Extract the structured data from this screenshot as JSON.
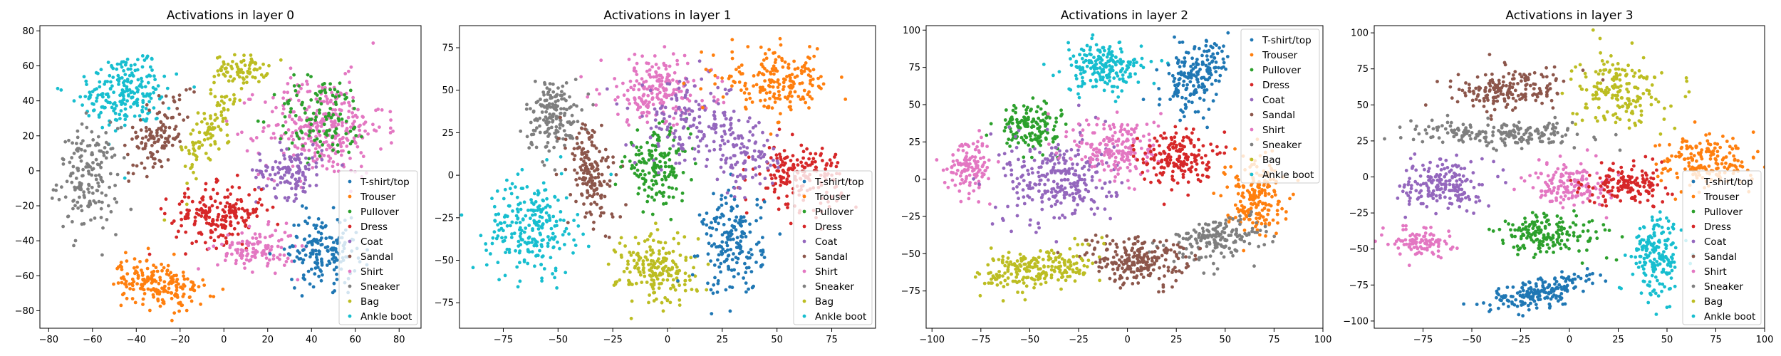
{
  "chart_data": [
    {
      "type": "scatter",
      "title": "Activations in layer 0",
      "xlim": [
        -84,
        90
      ],
      "ylim": [
        -90,
        83
      ],
      "xticks": [
        -80,
        -60,
        -40,
        -20,
        0,
        20,
        40,
        60,
        80
      ],
      "yticks": [
        -80,
        -60,
        -40,
        -20,
        0,
        20,
        40,
        60,
        80
      ],
      "legend_position": "lower right",
      "clusters": [
        {
          "series": "Ankle boot",
          "cx": -45,
          "cy": 45,
          "rx": 22,
          "ry": 22,
          "n": 220,
          "rot": 20
        },
        {
          "series": "Sandal",
          "cx": -30,
          "cy": 20,
          "rx": 10,
          "ry": 25,
          "n": 120,
          "rot": -20
        },
        {
          "series": "Sneaker",
          "cx": -62,
          "cy": -5,
          "rx": 14,
          "ry": 30,
          "n": 170,
          "rot": 0
        },
        {
          "series": "Bag",
          "cx": 8,
          "cy": 58,
          "rx": 12,
          "ry": 8,
          "n": 80,
          "rot": 0
        },
        {
          "series": "Bag",
          "cx": -7,
          "cy": 22,
          "rx": 7,
          "ry": 28,
          "n": 100,
          "rot": -20
        },
        {
          "series": "Shirt",
          "cx": 45,
          "cy": 25,
          "rx": 28,
          "ry": 28,
          "n": 320,
          "rot": 0
        },
        {
          "series": "Pullover",
          "cx": 45,
          "cy": 30,
          "rx": 22,
          "ry": 24,
          "n": 120,
          "rot": 0
        },
        {
          "series": "Coat",
          "cx": 30,
          "cy": 0,
          "rx": 15,
          "ry": 15,
          "n": 120,
          "rot": 0
        },
        {
          "series": "Dress",
          "cx": -2,
          "cy": -25,
          "rx": 22,
          "ry": 16,
          "n": 200,
          "rot": 10
        },
        {
          "series": "Shirt",
          "cx": 15,
          "cy": -45,
          "rx": 18,
          "ry": 12,
          "n": 120,
          "rot": 0
        },
        {
          "series": "T-shirt/top",
          "cx": 45,
          "cy": -45,
          "rx": 16,
          "ry": 20,
          "n": 170,
          "rot": 0
        },
        {
          "series": "Trouser",
          "cx": -30,
          "cy": -65,
          "rx": 20,
          "ry": 13,
          "n": 200,
          "rot": -20
        }
      ]
    },
    {
      "type": "scatter",
      "title": "Activations in layer 1",
      "xlim": [
        -95,
        95
      ],
      "ylim": [
        -90,
        88
      ],
      "xticks": [
        -75,
        -50,
        -25,
        0,
        25,
        50,
        75
      ],
      "yticks": [
        -75,
        -50,
        -25,
        0,
        25,
        50,
        75
      ],
      "legend_position": "lower right",
      "clusters": [
        {
          "series": "Sneaker",
          "cx": -52,
          "cy": 35,
          "rx": 13,
          "ry": 22,
          "n": 170,
          "rot": 0
        },
        {
          "series": "Ankle boot",
          "cx": -62,
          "cy": -30,
          "rx": 20,
          "ry": 28,
          "n": 240,
          "rot": 0
        },
        {
          "series": "Sandal",
          "cx": -35,
          "cy": 0,
          "rx": 10,
          "ry": 30,
          "n": 170,
          "rot": 10
        },
        {
          "series": "Shirt",
          "cx": -5,
          "cy": 50,
          "rx": 25,
          "ry": 20,
          "n": 200,
          "rot": 0
        },
        {
          "series": "Pullover",
          "cx": -5,
          "cy": 5,
          "rx": 15,
          "ry": 20,
          "n": 160,
          "rot": 0
        },
        {
          "series": "Coat",
          "cx": 10,
          "cy": 30,
          "rx": 25,
          "ry": 25,
          "n": 160,
          "rot": 0
        },
        {
          "series": "Trouser",
          "cx": 50,
          "cy": 55,
          "rx": 25,
          "ry": 18,
          "n": 200,
          "rot": -10
        },
        {
          "series": "Dress",
          "cx": 60,
          "cy": 0,
          "rx": 20,
          "ry": 18,
          "n": 180,
          "rot": 0
        },
        {
          "series": "Bag",
          "cx": -5,
          "cy": -55,
          "rx": 18,
          "ry": 22,
          "n": 200,
          "rot": 0
        },
        {
          "series": "T-shirt/top",
          "cx": 30,
          "cy": -40,
          "rx": 14,
          "ry": 30,
          "n": 190,
          "rot": 0
        },
        {
          "series": "Coat",
          "cx": 35,
          "cy": 10,
          "rx": 15,
          "ry": 20,
          "n": 100,
          "rot": 0
        }
      ]
    },
    {
      "type": "scatter",
      "title": "Activations in layer 2",
      "xlim": [
        -103,
        100
      ],
      "ylim": [
        -100,
        103
      ],
      "xticks": [
        -100,
        -75,
        -50,
        -25,
        0,
        25,
        50,
        75,
        100
      ],
      "yticks": [
        -75,
        -50,
        -25,
        0,
        25,
        50,
        75,
        100
      ],
      "legend_position": "upper right",
      "clusters": [
        {
          "series": "Ankle boot",
          "cx": -12,
          "cy": 75,
          "rx": 20,
          "ry": 16,
          "n": 200,
          "rot": 0
        },
        {
          "series": "T-shirt/top",
          "cx": 35,
          "cy": 70,
          "rx": 15,
          "ry": 25,
          "n": 180,
          "rot": -20
        },
        {
          "series": "Shirt",
          "cx": -80,
          "cy": 10,
          "rx": 12,
          "ry": 18,
          "n": 120,
          "rot": 0
        },
        {
          "series": "Pullover",
          "cx": -50,
          "cy": 35,
          "rx": 15,
          "ry": 15,
          "n": 150,
          "rot": 0
        },
        {
          "series": "Coat",
          "cx": -35,
          "cy": 0,
          "rx": 28,
          "ry": 30,
          "n": 280,
          "rot": 0
        },
        {
          "series": "Shirt",
          "cx": -5,
          "cy": 20,
          "rx": 22,
          "ry": 22,
          "n": 200,
          "rot": 0
        },
        {
          "series": "Dress",
          "cx": 25,
          "cy": 15,
          "rx": 18,
          "ry": 18,
          "n": 180,
          "rot": 0
        },
        {
          "series": "Trouser",
          "cx": 65,
          "cy": -10,
          "rx": 15,
          "ry": 25,
          "n": 190,
          "rot": 0
        },
        {
          "series": "Sneaker",
          "cx": 45,
          "cy": -40,
          "rx": 25,
          "ry": 14,
          "n": 180,
          "rot": 20
        },
        {
          "series": "Sandal",
          "cx": 5,
          "cy": -55,
          "rx": 28,
          "ry": 16,
          "n": 220,
          "rot": -10
        },
        {
          "series": "Bag",
          "cx": -45,
          "cy": -60,
          "rx": 30,
          "ry": 14,
          "n": 220,
          "rot": 10
        }
      ]
    },
    {
      "type": "scatter",
      "title": "Activations in layer 3",
      "xlim": [
        -100,
        100
      ],
      "ylim": [
        -105,
        105
      ],
      "xticks": [
        -75,
        -50,
        -25,
        0,
        25,
        50,
        75,
        100
      ],
      "yticks": [
        -100,
        -75,
        -50,
        -25,
        0,
        25,
        50,
        75,
        100
      ],
      "legend_position": "lower right",
      "clusters": [
        {
          "series": "Sandal",
          "cx": -30,
          "cy": 60,
          "rx": 30,
          "ry": 14,
          "n": 180,
          "rot": 10
        },
        {
          "series": "Bag",
          "cx": 25,
          "cy": 60,
          "rx": 22,
          "ry": 25,
          "n": 180,
          "rot": 0
        },
        {
          "series": "Sneaker",
          "cx": -35,
          "cy": 30,
          "rx": 45,
          "ry": 8,
          "n": 200,
          "rot": 0
        },
        {
          "series": "Trouser",
          "cx": 70,
          "cy": 10,
          "rx": 25,
          "ry": 18,
          "n": 180,
          "rot": -10
        },
        {
          "series": "Coat",
          "cx": -65,
          "cy": -5,
          "rx": 20,
          "ry": 18,
          "n": 180,
          "rot": 0
        },
        {
          "series": "Shirt",
          "cx": -75,
          "cy": -45,
          "rx": 15,
          "ry": 10,
          "n": 100,
          "rot": 0
        },
        {
          "series": "Shirt",
          "cx": 0,
          "cy": -5,
          "rx": 20,
          "ry": 15,
          "n": 150,
          "rot": 0
        },
        {
          "series": "Dress",
          "cx": 30,
          "cy": -5,
          "rx": 22,
          "ry": 14,
          "n": 150,
          "rot": 0
        },
        {
          "series": "Pullover",
          "cx": -10,
          "cy": -40,
          "rx": 28,
          "ry": 14,
          "n": 170,
          "rot": 0
        },
        {
          "series": "Ankle boot",
          "cx": 45,
          "cy": -55,
          "rx": 12,
          "ry": 28,
          "n": 180,
          "rot": 0
        },
        {
          "series": "T-shirt/top",
          "cx": -15,
          "cy": -80,
          "rx": 30,
          "ry": 10,
          "n": 180,
          "rot": 20
        }
      ]
    }
  ],
  "legend": [
    {
      "label": "T-shirt/top",
      "color": "#1f77b4"
    },
    {
      "label": "Trouser",
      "color": "#ff7f0e"
    },
    {
      "label": "Pullover",
      "color": "#2ca02c"
    },
    {
      "label": "Dress",
      "color": "#d62728"
    },
    {
      "label": "Coat",
      "color": "#9467bd"
    },
    {
      "label": "Sandal",
      "color": "#8c564b"
    },
    {
      "label": "Shirt",
      "color": "#e377c2"
    },
    {
      "label": "Sneaker",
      "color": "#7f7f7f"
    },
    {
      "label": "Bag",
      "color": "#bcbd22"
    },
    {
      "label": "Ankle boot",
      "color": "#17becf"
    }
  ]
}
